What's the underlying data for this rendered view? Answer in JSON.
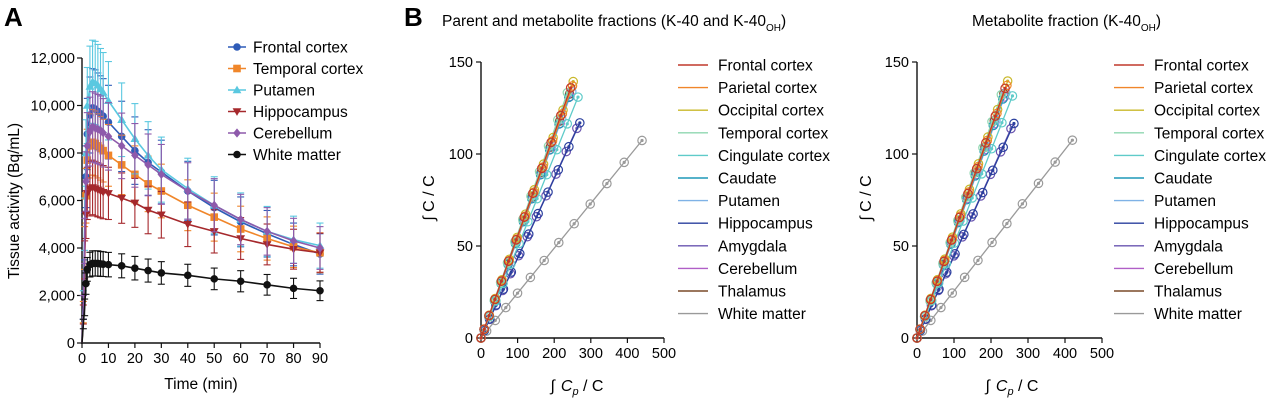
{
  "panels": {
    "a_label": "A",
    "b_label": "B",
    "b_title_main": "Parent and metabolite fractions (K-40 and K-40",
    "b_title_sub": "OH",
    "b_title_end": ")",
    "c_title_main": "Metabolite fraction (K-40",
    "c_title_sub": "OH",
    "c_title_end": ")"
  },
  "axes": {
    "a_xlabel": "Time (min)",
    "a_ylabel": "Tissue activity (Bq/mL)",
    "patlak_ylabel": "∫ C / C",
    "patlak_xlabel_int": "∫",
    "patlak_xlabel_c": "C",
    "patlak_xlabel_p": "p",
    "patlak_xlabel_rest": " / C"
  },
  "chart_data": [
    {
      "id": "A",
      "type": "line",
      "xlabel": "Time (min)",
      "ylabel": "Tissue activity (Bq/mL)",
      "xlim": [
        0,
        90
      ],
      "ylim": [
        0,
        12000
      ],
      "xticks": [
        "0",
        "10",
        "20",
        "30",
        "40",
        "50",
        "60",
        "70",
        "80",
        "90"
      ],
      "yticks": [
        "0",
        "2,000",
        "4,000",
        "6,000",
        "8,000",
        "10,000",
        "12,000"
      ],
      "legend_position": "top-right",
      "x": [
        0,
        0.5,
        1,
        1.5,
        2,
        3,
        4,
        5,
        6,
        7,
        8,
        10,
        15,
        20,
        25,
        30,
        40,
        50,
        60,
        70,
        80,
        90
      ],
      "series": [
        {
          "name": "Frontal cortex",
          "color": "#2f5cb8",
          "marker": "circle",
          "values": [
            0,
            1500,
            4500,
            7000,
            8800,
            9600,
            9900,
            9850,
            9750,
            9650,
            9550,
            9300,
            8700,
            8100,
            7600,
            7200,
            6400,
            5700,
            5100,
            4600,
            4150,
            3750
          ],
          "error": [
            0,
            500,
            1000,
            1300,
            1500,
            1600,
            1650,
            1650,
            1620,
            1600,
            1580,
            1550,
            1480,
            1420,
            1380,
            1340,
            1250,
            1150,
            1050,
            980,
            900,
            850
          ]
        },
        {
          "name": "Temporal cortex",
          "color": "#f0862a",
          "marker": "square",
          "values": [
            0,
            1300,
            4000,
            6200,
            7700,
            8300,
            8450,
            8400,
            8300,
            8200,
            8100,
            7900,
            7500,
            7100,
            6700,
            6400,
            5800,
            5300,
            4800,
            4400,
            4050,
            3800
          ],
          "error": [
            0,
            450,
            900,
            1150,
            1300,
            1350,
            1380,
            1370,
            1350,
            1340,
            1320,
            1300,
            1250,
            1200,
            1170,
            1130,
            1070,
            1010,
            960,
            910,
            870,
            840
          ]
        },
        {
          "name": "Putamen",
          "color": "#5ac8e0",
          "marker": "triangle",
          "values": [
            0,
            1600,
            5000,
            8000,
            10000,
            10800,
            11000,
            10950,
            10850,
            10700,
            10550,
            10200,
            9400,
            8600,
            7900,
            7300,
            6500,
            5800,
            5200,
            4700,
            4350,
            4100
          ],
          "error": [
            0,
            600,
            1100,
            1400,
            1600,
            1700,
            1750,
            1750,
            1720,
            1700,
            1680,
            1650,
            1550,
            1480,
            1420,
            1370,
            1280,
            1200,
            1120,
            1050,
            990,
            950
          ]
        },
        {
          "name": "Hippocampus",
          "color": "#a5282c",
          "marker": "triangle-down",
          "values": [
            0,
            1200,
            3500,
            5400,
            6300,
            6500,
            6550,
            6500,
            6450,
            6400,
            6350,
            6300,
            6100,
            5900,
            5600,
            5400,
            5000,
            4700,
            4400,
            4150,
            3950,
            3800
          ],
          "error": [
            0,
            400,
            800,
            1000,
            1100,
            1150,
            1150,
            1150,
            1140,
            1130,
            1120,
            1100,
            1060,
            1030,
            1000,
            980,
            940,
            910,
            880,
            860,
            840,
            820
          ]
        },
        {
          "name": "Cerebellum",
          "color": "#8e5aab",
          "marker": "diamond",
          "values": [
            0,
            1500,
            4300,
            6800,
            8300,
            8900,
            9100,
            9050,
            9000,
            8950,
            8850,
            8700,
            8300,
            7900,
            7500,
            7100,
            6400,
            5800,
            5200,
            4700,
            4300,
            4000
          ],
          "error": [
            0,
            500,
            950,
            1250,
            1400,
            1450,
            1480,
            1470,
            1460,
            1450,
            1440,
            1420,
            1380,
            1340,
            1300,
            1260,
            1190,
            1120,
            1060,
            1000,
            950,
            900
          ]
        },
        {
          "name": "White matter",
          "color": "#111111",
          "marker": "circle",
          "values": [
            0,
            800,
            1500,
            2500,
            3100,
            3300,
            3350,
            3350,
            3350,
            3330,
            3320,
            3300,
            3250,
            3150,
            3050,
            2950,
            2850,
            2700,
            2600,
            2450,
            2300,
            2200
          ],
          "error": [
            0,
            200,
            350,
            450,
            500,
            520,
            530,
            530,
            530,
            525,
            520,
            515,
            505,
            495,
            485,
            475,
            465,
            455,
            445,
            435,
            425,
            415
          ]
        }
      ]
    },
    {
      "id": "B",
      "type": "scatter",
      "title": "Parent and metabolite fractions (K-40 and K-40OH)",
      "xlabel": "∫ Cp / C",
      "ylabel": "∫ C / C",
      "xlim": [
        0,
        500
      ],
      "ylim": [
        0,
        150
      ],
      "xticks": [
        "0",
        "100",
        "200",
        "300",
        "400",
        "500"
      ],
      "yticks": [
        "0",
        "50",
        "100",
        "150"
      ],
      "legend_position": "right",
      "series": [
        {
          "name": "Frontal cortex",
          "color": "#c0392b",
          "xmax": 245,
          "slope": 0.555
        },
        {
          "name": "Parietal cortex",
          "color": "#f0862a",
          "xmax": 250,
          "slope": 0.548
        },
        {
          "name": "Occipital cortex",
          "color": "#c9b82a",
          "xmax": 252,
          "slope": 0.553
        },
        {
          "name": "Temporal cortex",
          "color": "#8fd7b0",
          "xmax": 236,
          "slope": 0.565
        },
        {
          "name": "Cingulate cortex",
          "color": "#5fcbc9",
          "xmax": 265,
          "slope": 0.494
        },
        {
          "name": "Caudate",
          "color": "#1f98b8",
          "xmax": 240,
          "slope": 0.545
        },
        {
          "name": "Putamen",
          "color": "#7fb2e6",
          "xmax": 248,
          "slope": 0.54
        },
        {
          "name": "Hippocampus",
          "color": "#2a3f9e",
          "xmax": 270,
          "slope": 0.433
        },
        {
          "name": "Amygdala",
          "color": "#6a55b0",
          "xmax": 262,
          "slope": 0.435
        },
        {
          "name": "Cerebellum",
          "color": "#b05fc7",
          "xmax": 243,
          "slope": 0.54
        },
        {
          "name": "Thalamus",
          "color": "#7a4a28",
          "xmax": 242,
          "slope": 0.548
        },
        {
          "name": "White matter",
          "color": "#9a9a9a",
          "xmax": 440,
          "slope": 0.244
        }
      ]
    },
    {
      "id": "C",
      "type": "scatter",
      "title": "Metabolite fraction (K-40OH)",
      "xlabel": "∫ Cp / C",
      "ylabel": "∫ C / C",
      "xlim": [
        0,
        500
      ],
      "ylim": [
        0,
        150
      ],
      "xticks": [
        "0",
        "100",
        "200",
        "300",
        "400",
        "500"
      ],
      "yticks": [
        "0",
        "50",
        "100",
        "150"
      ],
      "legend_position": "right",
      "series": [
        {
          "name": "Frontal cortex",
          "color": "#c0392b",
          "xmax": 238,
          "slope": 0.57
        },
        {
          "name": "Parietal cortex",
          "color": "#f0862a",
          "xmax": 243,
          "slope": 0.565
        },
        {
          "name": "Occipital cortex",
          "color": "#c9b82a",
          "xmax": 245,
          "slope": 0.57
        },
        {
          "name": "Temporal cortex",
          "color": "#8fd7b0",
          "xmax": 228,
          "slope": 0.58
        },
        {
          "name": "Cingulate cortex",
          "color": "#5fcbc9",
          "xmax": 258,
          "slope": 0.51
        },
        {
          "name": "Caudate",
          "color": "#1f98b8",
          "xmax": 232,
          "slope": 0.56
        },
        {
          "name": "Putamen",
          "color": "#7fb2e6",
          "xmax": 240,
          "slope": 0.555
        },
        {
          "name": "Hippocampus",
          "color": "#2a3f9e",
          "xmax": 262,
          "slope": 0.445
        },
        {
          "name": "Amygdala",
          "color": "#6a55b0",
          "xmax": 254,
          "slope": 0.448
        },
        {
          "name": "Cerebellum",
          "color": "#b05fc7",
          "xmax": 236,
          "slope": 0.555
        },
        {
          "name": "Thalamus",
          "color": "#7a4a28",
          "xmax": 235,
          "slope": 0.565
        },
        {
          "name": "White matter",
          "color": "#9a9a9a",
          "xmax": 420,
          "slope": 0.256
        }
      ]
    }
  ]
}
